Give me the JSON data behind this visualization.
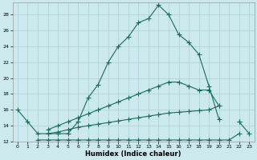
{
  "xlabel": "Humidex (Indice chaleur)",
  "bg_color": "#cce9ee",
  "grid_color": "#b0d4da",
  "line_color": "#1a6b5a",
  "xlim": [
    -0.5,
    23.5
  ],
  "ylim": [
    12,
    29.5
  ],
  "xticks": [
    0,
    1,
    2,
    3,
    4,
    5,
    6,
    7,
    8,
    9,
    10,
    11,
    12,
    13,
    14,
    15,
    16,
    17,
    18,
    19,
    20,
    21,
    22,
    23
  ],
  "yticks": [
    12,
    14,
    16,
    18,
    20,
    22,
    24,
    26,
    28
  ],
  "curve1_x": [
    0,
    1,
    2,
    3,
    4,
    5,
    6,
    7,
    8,
    9,
    10,
    11,
    12,
    13,
    14,
    15,
    16,
    17,
    18,
    19,
    20
  ],
  "curve1_y": [
    16.0,
    14.5,
    13.0,
    13.0,
    13.0,
    13.0,
    14.5,
    17.5,
    19.2,
    22.0,
    24.0,
    25.2,
    27.0,
    27.5,
    29.2,
    28.0,
    25.5,
    24.5,
    23.0,
    19.0,
    14.8
  ],
  "curve2_x": [
    0,
    1,
    2,
    3,
    4,
    5,
    6,
    7,
    8,
    9,
    10,
    11,
    12,
    13,
    14,
    15,
    16,
    17,
    18,
    19,
    20,
    21,
    22,
    23
  ],
  "curve2_y": [
    null,
    null,
    null,
    13.5,
    14.0,
    14.5,
    15.0,
    15.5,
    16.0,
    16.5,
    17.0,
    17.5,
    18.0,
    18.5,
    19.0,
    19.5,
    19.5,
    19.0,
    18.5,
    18.5,
    16.5,
    null,
    14.5,
    13.0
  ],
  "curve3_x": [
    0,
    1,
    2,
    3,
    4,
    5,
    6,
    7,
    8,
    9,
    10,
    11,
    12,
    13,
    14,
    15,
    16,
    17,
    18,
    19,
    20,
    21,
    22
  ],
  "curve3_y": [
    null,
    null,
    null,
    13.0,
    13.2,
    13.5,
    13.8,
    14.0,
    14.2,
    14.4,
    14.6,
    14.8,
    15.0,
    15.2,
    15.4,
    15.6,
    15.7,
    15.8,
    15.9,
    16.0,
    16.5,
    null,
    14.5
  ],
  "curve4_x": [
    2,
    3,
    4,
    5,
    6,
    7,
    8,
    9,
    10,
    11,
    12,
    13,
    14,
    15,
    16,
    17,
    18,
    19,
    20,
    21,
    22,
    23
  ],
  "curve4_y": [
    12.2,
    12.2,
    12.2,
    12.2,
    12.2,
    12.2,
    12.2,
    12.2,
    12.2,
    12.2,
    12.2,
    12.2,
    12.2,
    12.2,
    12.2,
    12.2,
    12.2,
    12.2,
    12.2,
    12.2,
    13.0,
    null
  ]
}
